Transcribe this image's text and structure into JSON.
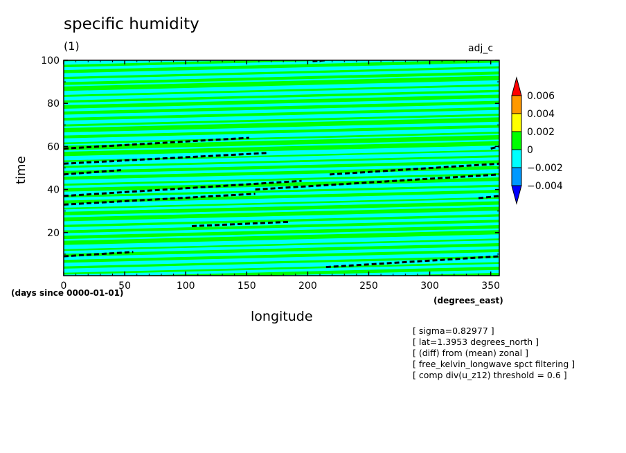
{
  "chart_data": {
    "type": "heatmap",
    "title": "specific humidity",
    "subtitle": "(1)",
    "tag": "adj_c",
    "xlabel": "longitude",
    "ylabel": "time",
    "x_units": "(degrees_east)",
    "y_units": "(days since 0000-01-01)",
    "xlim": [
      0,
      357
    ],
    "ylim": [
      0,
      100
    ],
    "x_ticks": [
      0,
      50,
      100,
      150,
      200,
      250,
      300,
      350
    ],
    "y_ticks": [
      20,
      40,
      60,
      80,
      100
    ],
    "colorbar": {
      "levels": [
        "0.006",
        "0.004",
        "0.002",
        "0",
        "−0.002",
        "−0.004"
      ],
      "colors": [
        "#ff0000",
        "#ff9900",
        "#ffff00",
        "#00ff00",
        "#00ffff",
        "#0099ff",
        "#0000ff"
      ],
      "extend": "both"
    },
    "bands": {
      "colors": [
        "#00ff00",
        "#00ffff"
      ],
      "slope_time_per_360deg": 5,
      "count": 40
    },
    "dashed_contours": [
      {
        "lon": [
          0,
          152
        ],
        "time": [
          59,
          64
        ]
      },
      {
        "lon": [
          0,
          168
        ],
        "time": [
          52,
          57
        ]
      },
      {
        "lon": [
          0,
          47
        ],
        "time": [
          47,
          49
        ]
      },
      {
        "lon": [
          0,
          195
        ],
        "time": [
          37,
          44
        ]
      },
      {
        "lon": [
          0,
          157
        ],
        "time": [
          33,
          38
        ]
      },
      {
        "lon": [
          105,
          185
        ],
        "time": [
          23,
          25
        ]
      },
      {
        "lon": [
          0,
          57
        ],
        "time": [
          9,
          11
        ]
      },
      {
        "lon": [
          157,
          357
        ],
        "time": [
          40,
          47
        ]
      },
      {
        "lon": [
          218,
          357
        ],
        "time": [
          47,
          52
        ]
      },
      {
        "lon": [
          215,
          357
        ],
        "time": [
          4,
          9
        ]
      },
      {
        "lon": [
          340,
          357
        ],
        "time": [
          36,
          37
        ]
      },
      {
        "lon": [
          350,
          357
        ],
        "time": [
          59,
          60
        ]
      },
      {
        "lon": [
          204,
          214
        ],
        "time": [
          99.5,
          100
        ]
      }
    ],
    "notes": [
      "[ sigma=0.82977 ]",
      "[ lat=1.3953 degrees_north ]",
      "[ (diff) from (mean) zonal ]",
      "[ free_kelvin_longwave spct filtering ]",
      "[ comp div(u_z12) threshold = 0.6 ]"
    ]
  }
}
